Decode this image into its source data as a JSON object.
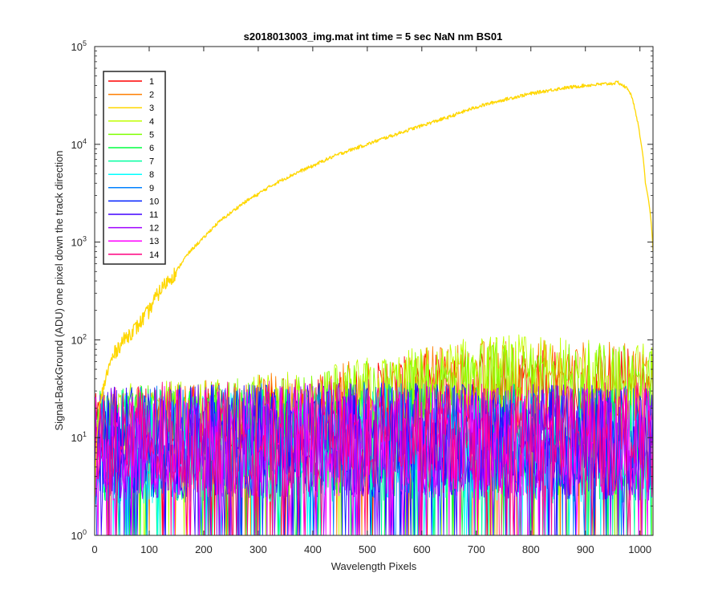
{
  "chart_data": {
    "type": "line",
    "title": "s2018013003_img.mat int time = 5 sec  NaN nm BS01",
    "xlabel": "Wavelength Pixels",
    "ylabel": "Signal-BackGround (ADU) one pixel down the track direction",
    "x_range": [
      0,
      1024
    ],
    "y_range": [
      1,
      100000
    ],
    "y_scale": "log",
    "grid": false,
    "legend_position": "top-left",
    "x_ticks": [
      "0",
      "100",
      "200",
      "300",
      "400",
      "500",
      "600",
      "700",
      "800",
      "900",
      "1000"
    ],
    "x_tick_values": [
      0,
      100,
      200,
      300,
      400,
      500,
      600,
      700,
      800,
      900,
      1000
    ],
    "y_ticks": [
      {
        "value": 1,
        "exp": "0"
      },
      {
        "value": 10,
        "exp": "1"
      },
      {
        "value": 100,
        "exp": "2"
      },
      {
        "value": 1000,
        "exp": "3"
      },
      {
        "value": 10000,
        "exp": "4"
      },
      {
        "value": 100000,
        "exp": "5"
      }
    ],
    "series": [
      {
        "name": "1",
        "color": "#ff0000",
        "kind": "noise",
        "base": [
          [
            0,
            12
          ],
          [
            400,
            18
          ],
          [
            750,
            40
          ],
          [
            1024,
            35
          ]
        ],
        "spread": 0.32
      },
      {
        "name": "2",
        "color": "#ff7f00",
        "kind": "noise",
        "base": [
          [
            0,
            14
          ],
          [
            400,
            22
          ],
          [
            750,
            48
          ],
          [
            1024,
            40
          ]
        ],
        "spread": 0.3
      },
      {
        "name": "3",
        "color": "#ffd700",
        "kind": "line",
        "x": [
          0,
          20,
          40,
          60,
          80,
          100,
          150,
          200,
          250,
          300,
          350,
          400,
          450,
          500,
          550,
          600,
          650,
          700,
          750,
          800,
          850,
          900,
          950,
          960,
          980,
          1000,
          1010,
          1024
        ],
        "y": [
          2,
          40,
          80,
          110,
          140,
          200,
          500,
          1100,
          2000,
          3100,
          4500,
          6000,
          8000,
          10000,
          12500,
          15500,
          19000,
          24000,
          28500,
          33000,
          37000,
          40000,
          42000,
          43000,
          36000,
          12000,
          4000,
          800
        ]
      },
      {
        "name": "4",
        "color": "#bfff00",
        "kind": "noise",
        "base": [
          [
            0,
            15
          ],
          [
            400,
            22
          ],
          [
            750,
            52
          ],
          [
            1024,
            42
          ]
        ],
        "spread": 0.3
      },
      {
        "name": "5",
        "color": "#7fff00",
        "kind": "noise",
        "base": [
          [
            0,
            14
          ],
          [
            400,
            20
          ],
          [
            750,
            45
          ],
          [
            1024,
            38
          ]
        ],
        "spread": 0.3
      },
      {
        "name": "6",
        "color": "#00ff40",
        "kind": "noise",
        "base": [
          [
            0,
            10
          ],
          [
            500,
            11
          ],
          [
            1024,
            10
          ]
        ],
        "spread": 0.45
      },
      {
        "name": "7",
        "color": "#00ffa0",
        "kind": "noise",
        "base": [
          [
            0,
            9
          ],
          [
            500,
            10
          ],
          [
            1024,
            9
          ]
        ],
        "spread": 0.45
      },
      {
        "name": "8",
        "color": "#00ffff",
        "kind": "noise",
        "base": [
          [
            0,
            9
          ],
          [
            500,
            10
          ],
          [
            1024,
            9
          ]
        ],
        "spread": 0.45
      },
      {
        "name": "9",
        "color": "#0080ff",
        "kind": "noise",
        "base": [
          [
            0,
            10
          ],
          [
            500,
            11
          ],
          [
            1024,
            10
          ]
        ],
        "spread": 0.45
      },
      {
        "name": "10",
        "color": "#0020ff",
        "kind": "noise",
        "base": [
          [
            0,
            10
          ],
          [
            500,
            11
          ],
          [
            1024,
            10
          ]
        ],
        "spread": 0.45
      },
      {
        "name": "11",
        "color": "#4000ff",
        "kind": "noise",
        "base": [
          [
            0,
            10
          ],
          [
            500,
            11
          ],
          [
            1024,
            10
          ]
        ],
        "spread": 0.45
      },
      {
        "name": "12",
        "color": "#9f00ff",
        "kind": "noise",
        "base": [
          [
            0,
            10
          ],
          [
            500,
            11
          ],
          [
            1024,
            10
          ]
        ],
        "spread": 0.45
      },
      {
        "name": "13",
        "color": "#ff00ff",
        "kind": "noise",
        "base": [
          [
            0,
            10
          ],
          [
            500,
            11
          ],
          [
            1024,
            10
          ]
        ],
        "spread": 0.45
      },
      {
        "name": "14",
        "color": "#ff0080",
        "kind": "noise",
        "base": [
          [
            0,
            11
          ],
          [
            500,
            12
          ],
          [
            1024,
            11
          ]
        ],
        "spread": 0.45
      }
    ]
  }
}
